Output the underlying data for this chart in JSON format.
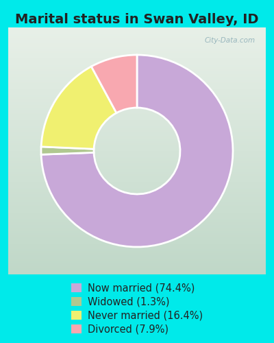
{
  "title": "Marital status in Swan Valley, ID",
  "slices": [
    74.4,
    1.3,
    16.4,
    7.9
  ],
  "colors": [
    "#c8a8d8",
    "#b0c890",
    "#f0f070",
    "#f8a8b0"
  ],
  "labels": [
    "Now married (74.4%)",
    "Widowed (1.3%)",
    "Never married (16.4%)",
    "Divorced (7.9%)"
  ],
  "bg_outer": "#00eaea",
  "bg_chart_grad_top": "#e8f0e8",
  "bg_chart_grad_bottom": "#c8ddd0",
  "watermark": "City-Data.com",
  "start_angle": 90,
  "donut_width": 0.55,
  "title_fontsize": 14,
  "legend_fontsize": 10.5
}
